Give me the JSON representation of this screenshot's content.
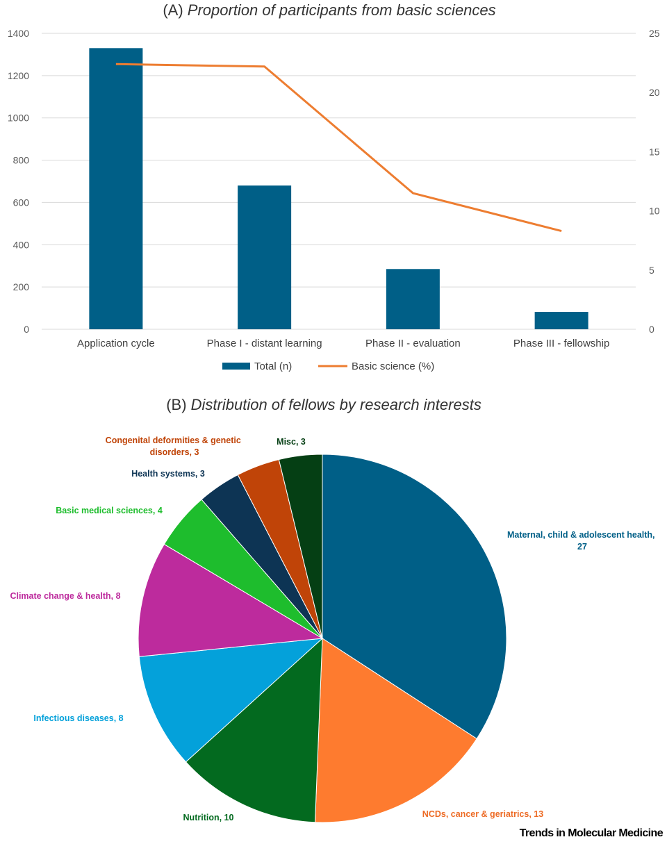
{
  "chart_data": [
    {
      "type": "bar+line",
      "title_prefix": "(A)",
      "title": "Proportion of participants from basic sciences",
      "categories": [
        "Application cycle",
        "Phase I - distant learning",
        "Phase II - evaluation",
        "Phase III - fellowship"
      ],
      "series": [
        {
          "name": "Total (n)",
          "type": "bar",
          "axis": "left",
          "color": "#005f87",
          "values": [
            1330,
            680,
            285,
            82
          ]
        },
        {
          "name": "Basic science (%)",
          "type": "line",
          "axis": "right",
          "color": "#ed7d31",
          "values": [
            22.4,
            22.2,
            11.5,
            8.3
          ]
        }
      ],
      "y_left": {
        "range": [
          0,
          1400
        ],
        "ticks": [
          0,
          200,
          400,
          600,
          800,
          1000,
          1200,
          1400
        ]
      },
      "y_right": {
        "range": [
          0,
          25
        ],
        "ticks": [
          0,
          5,
          10,
          15,
          20,
          25
        ]
      },
      "grid": true,
      "legend_position": "bottom"
    },
    {
      "type": "pie",
      "title_prefix": "(B)",
      "title": "Distribution of fellows by research interests",
      "slices": [
        {
          "label": "Maternal, child & adolescent health,",
          "label2": "27",
          "value": 27,
          "color": "#005f87"
        },
        {
          "label": "NCDs, cancer & geriatrics, 13",
          "value": 13,
          "color": "#fe7b2f"
        },
        {
          "label": "Nutrition, 10",
          "value": 10,
          "color": "#036a1f"
        },
        {
          "label": "Infectious diseases, 8",
          "value": 8,
          "color": "#04a1da"
        },
        {
          "label": "Climate change & health, 8",
          "value": 8,
          "color": "#bd2b9d"
        },
        {
          "label": "Basic medical sciences, 4",
          "value": 4,
          "color": "#1ebd2d"
        },
        {
          "label": "Health systems, 3",
          "value": 3,
          "color": "#0d3454"
        },
        {
          "label": "Congenital deformities & genetic",
          "label2": "disorders, 3",
          "value": 3,
          "color": "#c04408"
        },
        {
          "label": "Misc, 3",
          "value": 3,
          "color": "#053f14"
        }
      ],
      "label_colors": [
        "#005f87",
        "#ed6b25",
        "#036a1f",
        "#04a1da",
        "#bd2b9d",
        "#1ebd2d",
        "#0d3454",
        "#c04408",
        "#053f14"
      ]
    }
  ],
  "footer": {
    "journal": "Trends in Molecular Medicine"
  }
}
